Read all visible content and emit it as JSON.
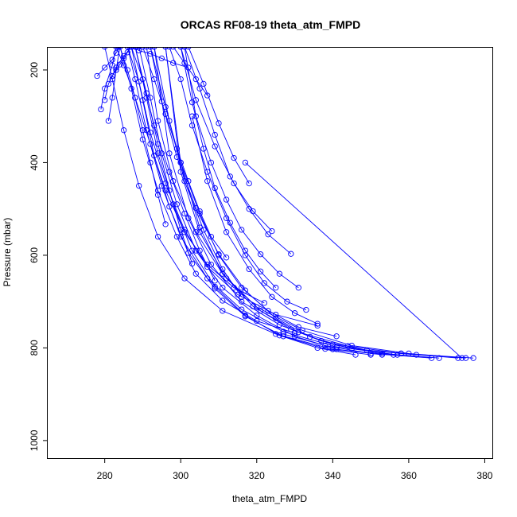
{
  "chart_data": {
    "type": "line",
    "title": "ORCAS RF08-19 theta_atm_FMPD",
    "xlabel": "theta_atm_FMPD",
    "ylabel": "Pressure (mbar)",
    "xlim": [
      265,
      382
    ],
    "ylim": [
      1038,
      152
    ],
    "y_inverted": true,
    "x_ticks": [
      280,
      300,
      320,
      340,
      360,
      380
    ],
    "y_ticks": [
      200,
      400,
      600,
      800,
      1000
    ],
    "grid": false,
    "legend": "none",
    "series_color": "#0000ff",
    "marker": "open-circle",
    "series": [
      {
        "x": [
          356,
          340,
          325,
          311,
          301,
          294,
          289,
          285,
          282,
          280
        ],
        "y": [
          815,
          803,
          770,
          720,
          650,
          560,
          450,
          330,
          220,
          150
        ]
      },
      {
        "x": [
          377,
          358,
          341,
          327,
          316,
          307,
          300,
          295,
          291,
          288,
          286
        ],
        "y": [
          822,
          812,
          798,
          765,
          717,
          650,
          560,
          450,
          330,
          220,
          150
        ]
      },
      {
        "x": [
          375,
          360,
          345,
          332,
          320,
          311,
          304,
          298,
          294,
          291
        ],
        "y": [
          822,
          812,
          795,
          762,
          712,
          640,
          550,
          440,
          310,
          150
        ]
      },
      {
        "x": [
          373,
          358,
          344,
          331,
          321,
          312,
          305,
          300,
          296
        ],
        "y": [
          822,
          812,
          796,
          766,
          720,
          650,
          550,
          420,
          150
        ]
      },
      {
        "x": [
          368,
          353,
          340,
          329,
          319,
          311,
          305,
          300,
          296
        ],
        "y": [
          822,
          812,
          793,
          760,
          710,
          640,
          540,
          400,
          150
        ]
      },
      {
        "x": [
          346,
          336,
          326,
          317,
          309,
          303,
          298,
          294,
          291,
          288
        ],
        "y": [
          815,
          800,
          773,
          730,
          668,
          590,
          490,
          380,
          260,
          150
        ]
      },
      {
        "x": [
          353,
          341,
          330,
          320,
          311,
          304,
          299,
          295,
          292,
          289
        ],
        "y": [
          815,
          803,
          775,
          730,
          670,
          590,
          490,
          380,
          260,
          150
        ]
      },
      {
        "x": [
          362,
          349,
          337,
          326,
          316,
          308,
          302,
          297,
          293
        ],
        "y": [
          815,
          805,
          785,
          750,
          700,
          620,
          520,
          380,
          150
        ]
      },
      {
        "x": [
          350,
          338,
          327,
          317,
          309,
          302,
          297,
          293,
          290,
          287
        ],
        "y": [
          815,
          802,
          775,
          732,
          672,
          595,
          495,
          385,
          265,
          150
        ]
      },
      {
        "x": [
          330,
          320,
          311,
          304,
          299,
          294,
          290,
          287,
          284
        ],
        "y": [
          768,
          742,
          698,
          640,
          560,
          460,
          350,
          240,
          150
        ]
      },
      {
        "x": [
          336,
          325,
          315,
          307,
          301,
          296,
          292,
          289,
          286
        ],
        "y": [
          752,
          728,
          685,
          625,
          545,
          445,
          335,
          225,
          150
        ]
      },
      {
        "x": [
          341,
          331,
          323,
          316,
          310,
          305,
          300,
          296,
          292
        ],
        "y": [
          775,
          755,
          720,
          670,
          600,
          510,
          400,
          280,
          150
        ]
      },
      {
        "x": [
          366,
          350,
          338,
          327
        ],
        "y": [
          822,
          812,
          795,
          770
        ]
      },
      {
        "x": [
          374,
          317
        ],
        "y": [
          822,
          400
        ]
      },
      {
        "x": [
          357,
          345,
          334,
          325,
          317,
          310,
          304,
          299,
          295,
          292
        ],
        "y": [
          815,
          802,
          776,
          736,
          676,
          598,
          498,
          388,
          268,
          150
        ]
      },
      {
        "x": [
          322,
          314,
          307,
          301,
          296,
          292,
          288,
          285,
          283
        ],
        "y": [
          703,
          670,
          620,
          550,
          460,
          360,
          260,
          190,
          150
        ]
      },
      {
        "x": [
          333,
          328,
          322,
          317,
          312,
          307,
          303,
          300,
          297
        ],
        "y": [
          718,
          700,
          660,
          600,
          520,
          420,
          320,
          220,
          150
        ]
      },
      {
        "x": [
          329,
          323,
          318,
          313,
          309,
          305,
          301
        ],
        "y": [
          597,
          555,
          500,
          430,
          340,
          240,
          150
        ]
      },
      {
        "x": [
          324,
          319,
          314,
          309,
          304,
          300
        ],
        "y": [
          548,
          505,
          445,
          365,
          265,
          150
        ]
      },
      {
        "x": [
          318,
          314,
          310,
          306,
          302
        ],
        "y": [
          445,
          390,
          315,
          230,
          150
        ]
      },
      {
        "x": [
          307,
          304,
          301,
          298
        ],
        "y": [
          255,
          220,
          185,
          150
        ]
      },
      {
        "x": [
          302,
          298,
          295,
          292,
          289,
          287
        ],
        "y": [
          195,
          185,
          175,
          165,
          158,
          150
        ]
      },
      {
        "x": [
          282,
          283,
          284,
          285,
          286,
          287
        ],
        "y": [
          213,
          200,
          188,
          175,
          162,
          150
        ]
      },
      {
        "x": [
          278,
          280,
          282,
          283,
          284
        ],
        "y": [
          213,
          195,
          178,
          163,
          150
        ]
      },
      {
        "x": [
          279,
          280,
          282,
          283
        ],
        "y": [
          285,
          240,
          190,
          150
        ]
      },
      {
        "x": [
          281,
          282,
          283,
          284
        ],
        "y": [
          310,
          260,
          200,
          150
        ]
      },
      {
        "x": [
          280,
          281,
          283,
          285,
          287
        ],
        "y": [
          265,
          230,
          195,
          170,
          150
        ]
      },
      {
        "x": [
          296,
          294,
          292,
          290,
          288,
          286,
          284
        ],
        "y": [
          533,
          470,
          400,
          330,
          260,
          200,
          150
        ]
      },
      {
        "x": [
          303,
          300,
          297,
          294,
          291,
          288
        ],
        "y": [
          618,
          545,
          460,
          360,
          250,
          150
        ]
      },
      {
        "x": [
          309,
          305,
          301,
          297,
          293,
          290,
          287
        ],
        "y": [
          655,
          590,
          510,
          420,
          320,
          220,
          150
        ]
      },
      {
        "x": [
          316,
          311,
          306,
          301,
          297,
          293
        ],
        "y": [
          690,
          630,
          545,
          440,
          310,
          150
        ]
      },
      {
        "x": [
          336,
          330,
          324,
          318,
          312,
          307,
          303
        ],
        "y": [
          748,
          725,
          690,
          630,
          550,
          440,
          300
        ]
      },
      {
        "x": [
          331,
          326,
          321,
          316,
          312,
          308,
          304,
          301
        ],
        "y": [
          670,
          640,
          598,
          545,
          480,
          400,
          300,
          150
        ]
      },
      {
        "x": [
          312,
          308,
          305,
          302,
          299,
          296,
          293,
          290
        ],
        "y": [
          605,
          560,
          505,
          440,
          370,
          295,
          220,
          150
        ]
      },
      {
        "x": [
          325,
          321,
          317,
          313,
          309,
          306,
          303,
          300
        ],
        "y": [
          670,
          635,
          590,
          530,
          455,
          370,
          270,
          150
        ]
      }
    ]
  }
}
